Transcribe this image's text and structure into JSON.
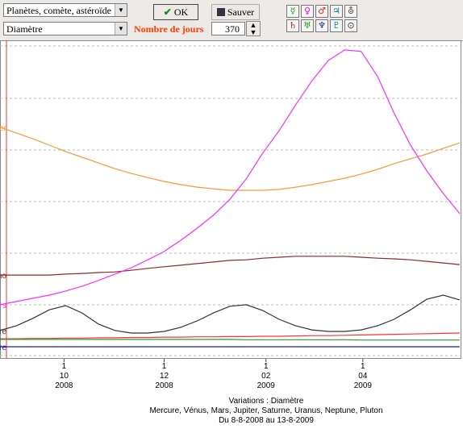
{
  "toolbar": {
    "object_select": "Planètes, comète, astéroïde",
    "quantity_select": "Diamètre",
    "ok_button": "OK",
    "save_button": "Sauver",
    "days_label": "Nombre de jours",
    "days_value": "370",
    "planet_buttons": [
      [
        "☿",
        "♀",
        "♂",
        "♃",
        "⛢"
      ],
      [
        "♄",
        "♅",
        "♆",
        "♇",
        "⊙"
      ]
    ]
  },
  "chart_data": {
    "type": "line",
    "title": "Variations : Diamètre",
    "subtitle": "Mercure, Vénus, Mars, Jupiter, Saturne, Uranus, Neptune, Pluton",
    "date_range": "Du 8-8-2008 au 13-8-2009",
    "xlim": [
      15,
      297
    ],
    "ylim": [
      0,
      100
    ],
    "xticks": [
      {
        "value": 54,
        "label": [
          "1",
          "10",
          "2008"
        ]
      },
      {
        "value": 115,
        "label": [
          "1",
          "12",
          "2008"
        ]
      },
      {
        "value": 177,
        "label": [
          "1",
          "02",
          "2009"
        ]
      },
      {
        "value": 236,
        "label": [
          "1",
          "04",
          "2009"
        ]
      }
    ],
    "x": [
      15,
      25,
      35,
      45,
      55,
      65,
      75,
      85,
      95,
      105,
      115,
      125,
      135,
      145,
      155,
      165,
      175,
      185,
      195,
      205,
      215,
      225,
      235,
      245,
      255,
      265,
      275,
      285,
      295
    ],
    "series": [
      {
        "label": "er",
        "color": "#f59a3c",
        "values": [
          72.7,
          70.9,
          69.1,
          67.1,
          65.1,
          63.3,
          61.5,
          59.7,
          58.2,
          56.9,
          55.7,
          54.7,
          53.9,
          53.4,
          52.9,
          52.9,
          52.9,
          53.2,
          53.9,
          54.7,
          55.7,
          56.7,
          58.0,
          59.5,
          61.3,
          62.8,
          64.3,
          66.1,
          67.8
        ]
      },
      {
        "label": "no",
        "color": "#8b2a2a",
        "values": [
          26.3,
          26.3,
          26.3,
          26.3,
          26.6,
          26.8,
          27.1,
          27.3,
          27.8,
          28.4,
          28.9,
          29.4,
          29.9,
          30.4,
          30.9,
          31.1,
          31.6,
          31.9,
          32.2,
          32.2,
          32.2,
          32.2,
          31.9,
          31.6,
          31.4,
          31.1,
          30.6,
          30.1,
          29.6
        ]
      },
      {
        "label": "s",
        "color": "#ff2cff",
        "values": [
          17.0,
          18.0,
          19.0,
          20.0,
          21.3,
          22.8,
          24.6,
          26.6,
          28.6,
          31.1,
          33.7,
          37.2,
          41.0,
          45.1,
          50.1,
          56.5,
          64.6,
          71.6,
          79.7,
          87.3,
          93.7,
          97.0,
          96.5,
          88.6,
          77.2,
          67.1,
          59.0,
          51.9,
          45.6
        ]
      },
      {
        "label": "ure",
        "color": "#333333",
        "values": [
          8.9,
          10.4,
          12.7,
          15.4,
          16.7,
          14.4,
          10.9,
          8.9,
          8.1,
          8.1,
          8.6,
          9.9,
          11.9,
          14.4,
          16.5,
          17.0,
          15.2,
          12.4,
          10.4,
          9.1,
          8.6,
          8.6,
          9.1,
          10.4,
          12.4,
          15.4,
          18.7,
          20.0,
          18.5
        ]
      },
      {
        "color": "#ff3030",
        "values": [
          6.3,
          6.3,
          6.4,
          6.4,
          6.5,
          6.5,
          6.6,
          6.6,
          6.7,
          6.7,
          6.8,
          6.8,
          6.9,
          6.9,
          7.0,
          7.0,
          7.1,
          7.1,
          7.2,
          7.3,
          7.3,
          7.4,
          7.5,
          7.6,
          7.7,
          7.8,
          7.9,
          8.0,
          8.1
        ]
      },
      {
        "color": "#2e9a2e",
        "values": [
          6.1,
          6.1,
          6.1,
          6.1,
          6.1,
          6.1,
          6.1,
          6.1,
          6.1,
          6.1,
          6.1,
          6.1,
          6.1,
          6.1,
          6.1,
          6.0,
          6.0,
          6.0,
          6.0,
          6.0,
          6.0,
          6.0,
          5.9,
          5.9,
          5.9,
          5.9,
          5.9,
          5.9,
          5.9
        ]
      },
      {
        "label": "ure",
        "color": "#2020a0",
        "values": [
          3.8,
          3.8,
          3.8,
          3.8,
          3.8,
          3.8,
          3.8,
          3.8,
          3.8,
          3.8,
          3.8,
          3.8,
          3.8,
          3.8,
          3.8,
          3.8,
          3.8,
          3.8,
          3.8,
          3.8,
          3.8,
          3.8,
          3.8,
          3.8,
          3.8,
          3.8,
          3.8,
          3.8,
          3.8
        ]
      }
    ]
  }
}
